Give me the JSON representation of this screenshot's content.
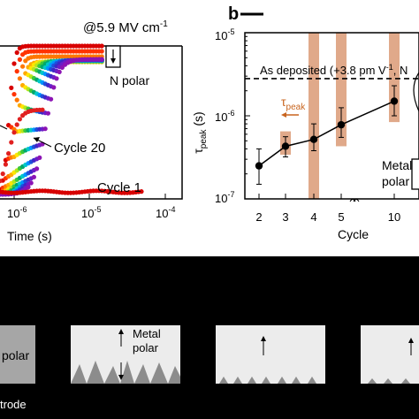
{
  "left_chart": {
    "field_label": "@5.9 MV cm",
    "field_exp": "-1",
    "n_polar_label": "N polar",
    "cycle20_label": "Cycle 20",
    "cycle1_label": "Cycle 1",
    "xlabel": "Time (s)",
    "xticks": [
      {
        "base": "10",
        "exp": "-6"
      },
      {
        "base": "10",
        "exp": "-5"
      },
      {
        "base": "10",
        "exp": "-4"
      }
    ]
  },
  "right_chart": {
    "panel_letter": "b",
    "ylabel_main": "τ",
    "ylabel_sub": "peak",
    "ylabel_unit": " (s)",
    "yticks": [
      {
        "base": "10",
        "exp": "-5"
      },
      {
        "base": "10",
        "exp": "-6"
      },
      {
        "base": "10",
        "exp": "-7"
      }
    ],
    "as_deposited_label": "As deposited (+3.8 pm V",
    "as_deposited_exp": "-1",
    "as_deposited_tail": ", N",
    "tau_peak_arrow_main": "τ",
    "tau_peak_arrow_sub": "peak",
    "metal_polar_label_1": "Metal",
    "metal_polar_label_2": "polar",
    "xlabel": "Cycle"
  },
  "chart_data": {
    "type": "scatter",
    "title": "",
    "xlabel": "Cycle",
    "ylabel": "τpeak (s)",
    "yscale": "log",
    "ylim": [
      1e-07,
      1e-05
    ],
    "categories": [
      "2",
      "3",
      "4",
      "5",
      "10"
    ],
    "series": [
      {
        "values": [
          2.5e-07,
          4.3e-07,
          5.2e-07,
          7.8e-07,
          1.5e-06
        ],
        "error_low": [
          1.5e-07,
          3.2e-07,
          3.8e-07,
          5.5e-07,
          1e-06
        ],
        "error_high": [
          4e-07,
          5.6e-07,
          8e-07,
          1.25e-06,
          2.3e-06
        ]
      }
    ],
    "bars_top": [
      null,
      6.5e-07,
      1e-05,
      1e-05,
      1e-05
    ],
    "bars_bottom": [
      null,
      3.4e-07,
      1e-07,
      4.3e-07,
      8.4e-07
    ],
    "reference_line": {
      "label": "As deposited (+3.8 pm V-1, N",
      "value": 2.8e-06
    },
    "grid": false
  },
  "colors": {
    "bar": "#e0a98a",
    "line": "#000000",
    "gray_cone": "#8c8c8c",
    "panel_gray": "#b3b3b3",
    "light_gray": "#e6e6e6"
  },
  "bottom_panels": {
    "panel1_label": "polar",
    "panel1_caption": "trode",
    "panel2_label_1": "Metal",
    "panel2_label_2": "polar"
  }
}
